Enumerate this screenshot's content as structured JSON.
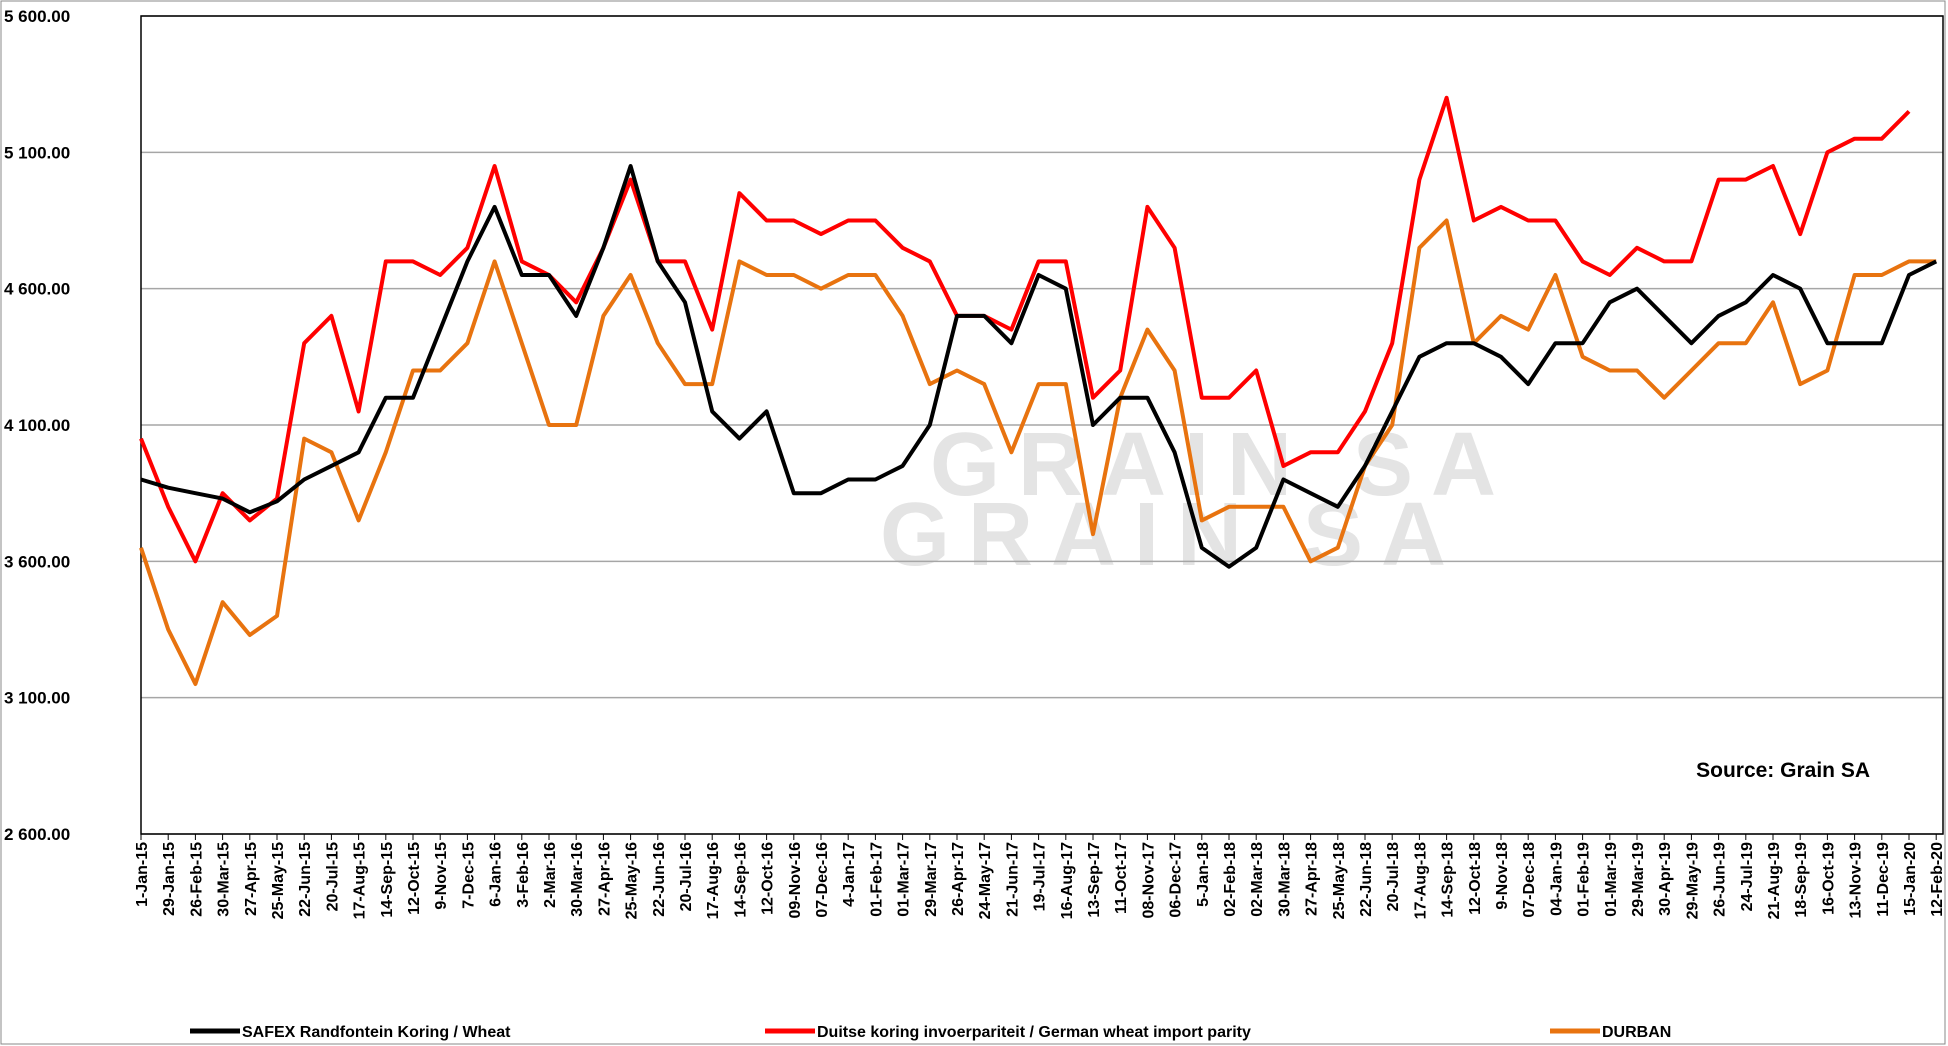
{
  "chart_data": {
    "type": "line",
    "categories": [
      "1-Jan-15",
      "29-Jan-15",
      "26-Feb-15",
      "30-Mar-15",
      "27-Apr-15",
      "25-May-15",
      "22-Jun-15",
      "20-Jul-15",
      "17-Aug-15",
      "14-Sep-15",
      "12-Oct-15",
      "9-Nov-15",
      "7-Dec-15",
      "6-Jan-16",
      "3-Feb-16",
      "2-Mar-16",
      "30-Mar-16",
      "27-Apr-16",
      "25-May-16",
      "22-Jun-16",
      "20-Jul-16",
      "17-Aug-16",
      "14-Sep-16",
      "12-Oct-16",
      "09-Nov-16",
      "07-Dec-16",
      "4-Jan-17",
      "01-Feb-17",
      "01-Mar-17",
      "29-Mar-17",
      "26-Apr-17",
      "24-May-17",
      "21-Jun-17",
      "19-Jul-17",
      "16-Aug-17",
      "13-Sep-17",
      "11-Oct-17",
      "08-Nov-17",
      "06-Dec-17",
      "5-Jan-18",
      "02-Feb-18",
      "02-Mar-18",
      "30-Mar-18",
      "27-Apr-18",
      "25-May-18",
      "22-Jun-18",
      "20-Jul-18",
      "17-Aug-18",
      "14-Sep-18",
      "12-Oct-18",
      "9-Nov-18",
      "07-Dec-18",
      "04-Jan-19",
      "01-Feb-19",
      "01-Mar-19",
      "29-Mar-19",
      "30-Apr-19",
      "29-May-19",
      "26-Jun-19",
      "24-Jul-19",
      "21-Aug-19",
      "18-Sep-19",
      "16-Oct-19",
      "13-Nov-19",
      "11-Dec-19",
      "15-Jan-20",
      "12-Feb-20"
    ],
    "series": [
      {
        "name": "SAFEX  Randfontein Koring / Wheat",
        "color": "#000000",
        "values": [
          3900,
          3870,
          3850,
          3830,
          3780,
          3820,
          3900,
          3950,
          4000,
          4200,
          4200,
          4450,
          4700,
          4900,
          4650,
          4650,
          4500,
          4750,
          5050,
          4700,
          4550,
          4150,
          4050,
          4150,
          3850,
          3850,
          3900,
          3900,
          3950,
          4100,
          4500,
          4500,
          4400,
          4650,
          4600,
          4100,
          4200,
          4200,
          4000,
          3650,
          3580,
          3650,
          3900,
          3850,
          3800,
          3950,
          4150,
          4350,
          4400,
          4400,
          4350,
          4250,
          4400,
          4400,
          4550,
          4600,
          4500,
          4400,
          4500,
          4550,
          4650,
          4600,
          4400,
          4400,
          4400,
          4650,
          4700
        ]
      },
      {
        "name": "Duitse koring invoerpariteit / German wheat import parity",
        "color": "#ff0000",
        "values": [
          4050,
          3800,
          3600,
          3850,
          3750,
          3830,
          4400,
          4500,
          4150,
          4700,
          4700,
          4650,
          4750,
          5050,
          4700,
          4650,
          4550,
          4750,
          5000,
          4700,
          4700,
          4450,
          4950,
          4850,
          4850,
          4800,
          4850,
          4850,
          4750,
          4700,
          4500,
          4500,
          4450,
          4700,
          4700,
          4200,
          4300,
          4900,
          4750,
          4200,
          4200,
          4300,
          3950,
          4000,
          4000,
          4150,
          4400,
          5000,
          5300,
          4850,
          4900,
          4850,
          4850,
          4700,
          4650,
          4750,
          4700,
          4700,
          5000,
          5000,
          5050,
          4800,
          5100,
          5150,
          5150,
          5250,
          null
        ]
      },
      {
        "name": "DURBAN",
        "color": "#e8730f",
        "values": [
          3650,
          3350,
          3150,
          3450,
          3330,
          3400,
          4050,
          4000,
          3750,
          4000,
          4300,
          4300,
          4400,
          4700,
          4400,
          4100,
          4100,
          4500,
          4650,
          4400,
          4250,
          4250,
          4700,
          4650,
          4650,
          4600,
          4650,
          4650,
          4500,
          4250,
          4300,
          4250,
          4000,
          4250,
          4250,
          3700,
          4200,
          4450,
          4300,
          3750,
          3800,
          3800,
          3800,
          3600,
          3650,
          3950,
          4100,
          4750,
          4850,
          4400,
          4500,
          4450,
          4650,
          4350,
          4300,
          4300,
          4200,
          4300,
          4400,
          4400,
          4550,
          4250,
          4300,
          4650,
          4650,
          4700,
          4700
        ]
      }
    ],
    "ylim": [
      2600,
      5600
    ],
    "yticks": [
      {
        "value": 2600,
        "label": "2 600.00"
      },
      {
        "value": 3100,
        "label": "3 100.00"
      },
      {
        "value": 3600,
        "label": "3 600.00"
      },
      {
        "value": 4100,
        "label": "4 100.00"
      },
      {
        "value": 4600,
        "label": "4 600.00"
      },
      {
        "value": 5100,
        "label": "5 100.00"
      },
      {
        "value": 5600,
        "label": "5 600.00"
      }
    ],
    "grid": true,
    "annotation": "Source: Grain SA",
    "watermark": "GRAIN SA",
    "legend": "bottom"
  }
}
